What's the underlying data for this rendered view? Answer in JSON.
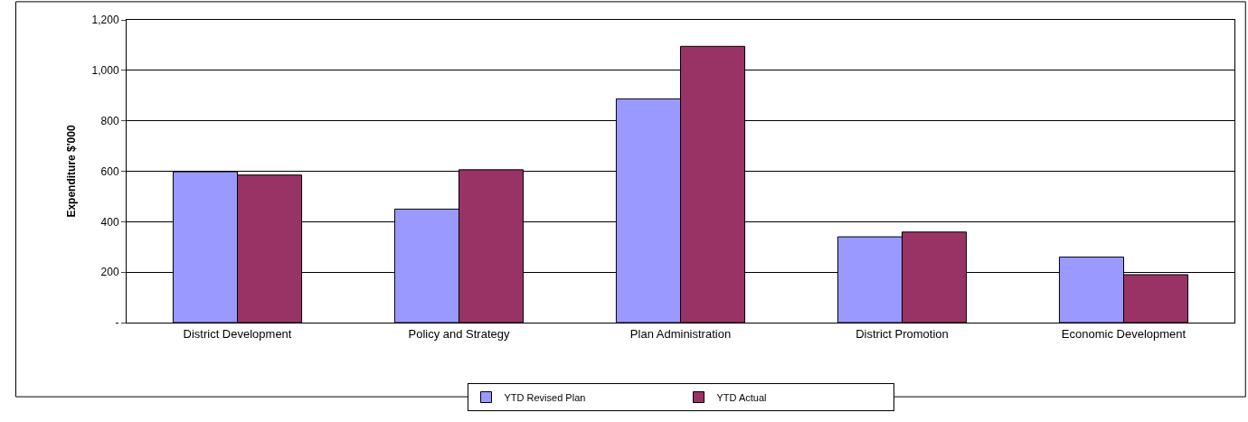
{
  "chart_data": {
    "type": "bar",
    "ylabel": "Expenditure $'000",
    "categories": [
      "District Development",
      "Policy and Strategy",
      "Plan Administration",
      "District Promotion",
      "Economic Development"
    ],
    "series": [
      {
        "name": "YTD Revised Plan",
        "color": "#9999ff",
        "values": [
          598,
          450,
          887,
          340,
          260
        ]
      },
      {
        "name": "YTD Actual",
        "color": "#993366",
        "values": [
          585,
          606,
          1095,
          359,
          190
        ]
      }
    ],
    "ylim": [
      0,
      1200
    ],
    "yticks": [
      {
        "value": 0,
        "label": "-"
      },
      {
        "value": 200,
        "label": "200"
      },
      {
        "value": 400,
        "label": "400"
      },
      {
        "value": 600,
        "label": "600"
      },
      {
        "value": 800,
        "label": "800"
      },
      {
        "value": 1000,
        "label": "1,000"
      },
      {
        "value": 1200,
        "label": "1,200"
      }
    ],
    "grid": "y",
    "legend": "bottom"
  }
}
